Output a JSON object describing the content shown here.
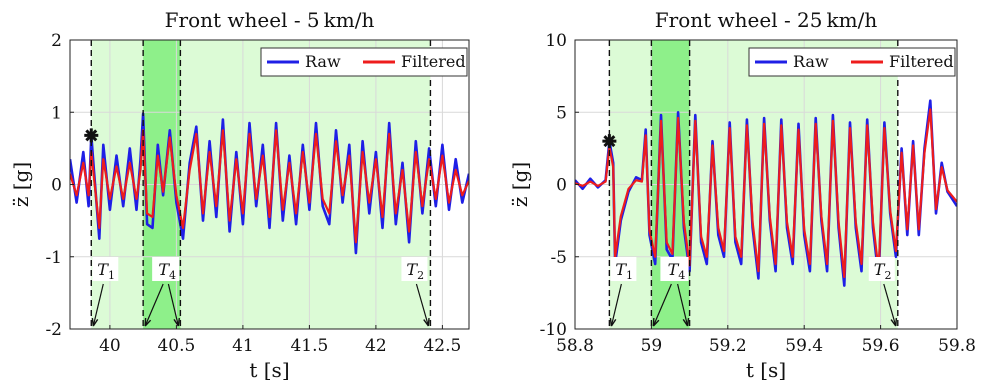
{
  "chart_data": [
    {
      "type": "line",
      "title": "Front wheel - 5 km/h",
      "xlabel": "t [s]",
      "ylabel": "z̈ [g]",
      "xlim": [
        39.7,
        42.7
      ],
      "ylim": [
        -2,
        2
      ],
      "xticks": [
        "40",
        "40.5",
        "41",
        "41.5",
        "42",
        "42.5"
      ],
      "xtick_values": [
        40,
        40.5,
        41,
        41.5,
        42,
        42.5
      ],
      "yticks": [
        "-2",
        "-1",
        "0",
        "1",
        "2"
      ],
      "ytick_values": [
        -2,
        -1,
        0,
        1,
        2
      ],
      "grid": true,
      "legend": {
        "placement": "top-right",
        "entries": [
          "Raw",
          "Filtered"
        ]
      },
      "colors": {
        "raw": "#1f1fe6",
        "filtered": "#ee1c1c",
        "light_band": "#dcfbd6",
        "dark_band": "#8ef08a",
        "grid": "#d9d9d9"
      },
      "bands": [
        {
          "from": 39.86,
          "to": 42.41,
          "style": "light"
        },
        {
          "from": 40.25,
          "to": 40.53,
          "style": "dark"
        }
      ],
      "markers": [
        {
          "label": "T1",
          "x": 39.86
        },
        {
          "label": "T3",
          "x": 40.25
        },
        {
          "label": "T4",
          "x": 40.53
        },
        {
          "label": "T2",
          "x": 42.41
        }
      ],
      "peak_marker": {
        "x": 39.86,
        "y": 0.68
      },
      "series": [
        {
          "name": "Raw",
          "x": [
            39.7,
            39.75,
            39.8,
            39.84,
            39.86,
            39.88,
            39.92,
            39.95,
            40.0,
            40.05,
            40.1,
            40.15,
            40.2,
            40.23,
            40.25,
            40.28,
            40.32,
            40.36,
            40.4,
            40.45,
            40.5,
            40.55,
            40.6,
            40.65,
            40.7,
            40.75,
            40.8,
            40.85,
            40.9,
            40.95,
            41.0,
            41.05,
            41.1,
            41.15,
            41.2,
            41.25,
            41.3,
            41.35,
            41.4,
            41.45,
            41.5,
            41.55,
            41.6,
            41.65,
            41.7,
            41.75,
            41.8,
            41.85,
            41.9,
            41.95,
            42.0,
            42.05,
            42.1,
            42.15,
            42.2,
            42.25,
            42.3,
            42.35,
            42.4,
            42.45,
            42.5,
            42.55,
            42.6,
            42.65,
            42.7
          ],
          "y": [
            0.35,
            -0.25,
            0.45,
            -0.3,
            0.68,
            0.2,
            -0.75,
            0.55,
            -0.35,
            0.4,
            -0.3,
            0.5,
            -0.35,
            0.35,
            0.98,
            -0.55,
            -0.6,
            0.55,
            -0.15,
            0.75,
            -0.25,
            -0.75,
            0.3,
            0.8,
            -0.5,
            0.6,
            -0.45,
            0.9,
            -0.65,
            0.45,
            -0.55,
            0.85,
            -0.3,
            0.55,
            -0.6,
            0.85,
            -0.5,
            0.4,
            -0.55,
            0.55,
            -0.35,
            0.85,
            -0.3,
            -0.55,
            0.75,
            -0.25,
            0.55,
            -0.95,
            0.6,
            -0.4,
            0.45,
            -0.6,
            0.85,
            -0.55,
            0.3,
            -0.8,
            0.6,
            -0.4,
            0.5,
            -0.3,
            0.55,
            -0.35,
            0.35,
            -0.25,
            0.15
          ]
        },
        {
          "name": "Filtered",
          "x": [
            39.7,
            39.75,
            39.8,
            39.84,
            39.86,
            39.88,
            39.92,
            39.95,
            40.0,
            40.05,
            40.1,
            40.15,
            40.2,
            40.23,
            40.25,
            40.28,
            40.32,
            40.36,
            40.4,
            40.45,
            40.5,
            40.55,
            40.6,
            40.65,
            40.7,
            40.75,
            40.8,
            40.85,
            40.9,
            40.95,
            41.0,
            41.05,
            41.1,
            41.15,
            41.2,
            41.25,
            41.3,
            41.35,
            41.4,
            41.45,
            41.5,
            41.55,
            41.6,
            41.65,
            41.7,
            41.75,
            41.8,
            41.85,
            41.9,
            41.95,
            42.0,
            42.05,
            42.1,
            42.15,
            42.2,
            42.25,
            42.3,
            42.35,
            42.4,
            42.45,
            42.5,
            42.55,
            42.6,
            42.65,
            42.7
          ],
          "y": [
            0.15,
            -0.15,
            0.3,
            -0.15,
            0.45,
            0.1,
            -0.6,
            0.35,
            -0.2,
            0.25,
            -0.2,
            0.3,
            -0.2,
            0.2,
            0.75,
            -0.4,
            -0.45,
            0.4,
            -0.1,
            0.65,
            -0.15,
            -0.6,
            0.2,
            0.7,
            -0.4,
            0.45,
            -0.3,
            0.75,
            -0.5,
            0.35,
            -0.4,
            0.7,
            -0.2,
            0.4,
            -0.45,
            0.75,
            -0.35,
            0.3,
            -0.4,
            0.45,
            -0.25,
            0.7,
            -0.2,
            -0.4,
            0.6,
            -0.15,
            0.4,
            -0.8,
            0.45,
            -0.25,
            0.35,
            -0.45,
            0.7,
            -0.4,
            0.2,
            -0.65,
            0.45,
            -0.3,
            0.35,
            -0.2,
            0.4,
            -0.25,
            0.2,
            -0.15,
            0.05
          ]
        }
      ]
    },
    {
      "type": "line",
      "title": "Front wheel - 25 km/h",
      "xlabel": "t [s]",
      "ylabel": "z̈ [g]",
      "xlim": [
        58.8,
        59.8
      ],
      "ylim": [
        -10,
        10
      ],
      "xticks": [
        "58.8",
        "59",
        "59.2",
        "59.4",
        "59.6",
        "59.8"
      ],
      "xtick_values": [
        58.8,
        59.0,
        59.2,
        59.4,
        59.6,
        59.8
      ],
      "yticks": [
        "-10",
        "-5",
        "0",
        "5",
        "10"
      ],
      "ytick_values": [
        -10,
        -5,
        0,
        5,
        10
      ],
      "grid": true,
      "legend": {
        "placement": "top-right",
        "entries": [
          "Raw",
          "Filtered"
        ]
      },
      "colors": {
        "raw": "#1f1fe6",
        "filtered": "#ee1c1c",
        "light_band": "#dcfbd6",
        "dark_band": "#8ef08a",
        "grid": "#d9d9d9"
      },
      "bands": [
        {
          "from": 58.89,
          "to": 59.645,
          "style": "light"
        },
        {
          "from": 59.0,
          "to": 59.1,
          "style": "dark"
        }
      ],
      "markers": [
        {
          "label": "T1",
          "x": 58.89
        },
        {
          "label": "T3",
          "x": 59.0
        },
        {
          "label": "T4",
          "x": 59.1
        },
        {
          "label": "T2",
          "x": 59.645
        }
      ],
      "peak_marker": {
        "x": 58.89,
        "y": 3.0
      },
      "series": [
        {
          "name": "Raw",
          "x": [
            58.8,
            58.82,
            58.84,
            58.86,
            58.88,
            58.89,
            58.9,
            58.905,
            58.92,
            58.94,
            58.96,
            58.975,
            58.985,
            58.995,
            59.01,
            59.025,
            59.04,
            59.055,
            59.07,
            59.085,
            59.1,
            59.115,
            59.13,
            59.145,
            59.16,
            59.175,
            59.19,
            59.205,
            59.22,
            59.235,
            59.25,
            59.265,
            59.28,
            59.295,
            59.31,
            59.325,
            59.34,
            59.355,
            59.37,
            59.385,
            59.4,
            59.415,
            59.43,
            59.445,
            59.46,
            59.475,
            59.49,
            59.505,
            59.52,
            59.535,
            59.55,
            59.565,
            59.58,
            59.595,
            59.61,
            59.625,
            59.64,
            59.655,
            59.67,
            59.685,
            59.7,
            59.715,
            59.73,
            59.745,
            59.76,
            59.775,
            59.8
          ],
          "y": [
            0.3,
            -0.3,
            0.4,
            -0.2,
            0.3,
            3.0,
            1.5,
            -5.5,
            -2.5,
            -0.5,
            0.5,
            0.3,
            3.8,
            -3.5,
            -5.5,
            4.8,
            -4.5,
            -5.2,
            5.0,
            -3.0,
            -6.0,
            4.8,
            -4.0,
            -5.5,
            3.0,
            -3.5,
            -5.0,
            4.3,
            -4.0,
            -5.5,
            4.5,
            -3.0,
            -6.5,
            4.6,
            -2.5,
            -6.0,
            4.5,
            -3.0,
            -5.5,
            4.2,
            -3.5,
            -6.0,
            4.6,
            -2.5,
            -6.0,
            4.8,
            -3.0,
            -7.0,
            4.3,
            -3.0,
            -6.0,
            4.5,
            -3.0,
            -6.5,
            4.3,
            -2.0,
            -5.0,
            2.5,
            -3.5,
            3.0,
            -3.5,
            2.5,
            5.8,
            -2.0,
            1.5,
            -0.5,
            -1.5
          ]
        },
        {
          "name": "Filtered",
          "x": [
            58.8,
            58.82,
            58.84,
            58.86,
            58.88,
            58.89,
            58.9,
            58.905,
            58.92,
            58.94,
            58.96,
            58.975,
            58.985,
            58.995,
            59.01,
            59.025,
            59.04,
            59.055,
            59.07,
            59.085,
            59.1,
            59.115,
            59.13,
            59.145,
            59.16,
            59.175,
            59.19,
            59.205,
            59.22,
            59.235,
            59.25,
            59.265,
            59.28,
            59.295,
            59.31,
            59.325,
            59.34,
            59.355,
            59.37,
            59.385,
            59.4,
            59.415,
            59.43,
            59.445,
            59.46,
            59.475,
            59.49,
            59.505,
            59.52,
            59.535,
            59.55,
            59.565,
            59.58,
            59.595,
            59.61,
            59.625,
            59.64,
            59.655,
            59.67,
            59.685,
            59.7,
            59.715,
            59.73,
            59.745,
            59.76,
            59.775,
            59.8
          ],
          "y": [
            0.1,
            -0.1,
            0.2,
            -0.1,
            0.2,
            2.6,
            1.2,
            -5.0,
            -2.2,
            -0.3,
            0.3,
            0.2,
            3.4,
            -3.2,
            -5.0,
            4.4,
            -4.0,
            -4.8,
            4.6,
            -2.6,
            -5.6,
            4.4,
            -3.6,
            -5.0,
            2.7,
            -3.0,
            -4.6,
            3.9,
            -3.6,
            -5.0,
            4.1,
            -2.6,
            -6.0,
            4.2,
            -2.2,
            -5.5,
            4.1,
            -2.6,
            -5.0,
            3.8,
            -3.1,
            -5.5,
            4.2,
            -2.2,
            -5.5,
            4.4,
            -2.6,
            -6.4,
            3.9,
            -2.6,
            -5.5,
            4.1,
            -2.6,
            -6.0,
            3.9,
            -1.8,
            -4.6,
            2.2,
            -3.1,
            2.7,
            -3.1,
            2.2,
            5.2,
            -1.7,
            1.2,
            -0.4,
            -1.2
          ]
        }
      ]
    }
  ]
}
